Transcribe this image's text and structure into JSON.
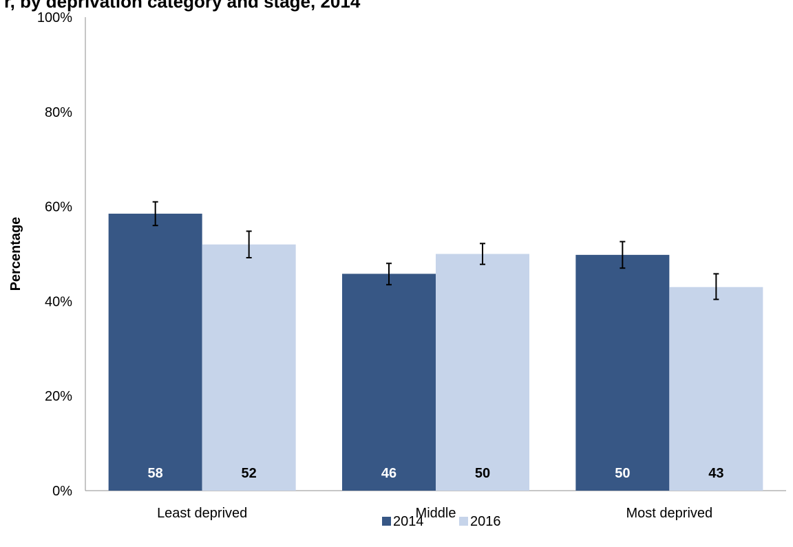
{
  "chart_data": {
    "type": "bar",
    "title": "r, by deprivation category and stage, 2014",
    "ylabel": "Percentage",
    "xlabel": "",
    "ylim": [
      0,
      100
    ],
    "yticks": [
      0,
      20,
      40,
      60,
      80,
      100
    ],
    "ytick_labels": [
      "0%",
      "20%",
      "40%",
      "60%",
      "80%",
      "100%"
    ],
    "categories": [
      "Least deprived",
      "Middle",
      "Most deprived"
    ],
    "series": [
      {
        "name": "2014",
        "color": "#375785",
        "label_color": "#ffffff",
        "values": [
          58.5,
          45.8,
          49.8
        ],
        "labels": [
          "58",
          "46",
          "50"
        ],
        "error_low": [
          56.0,
          43.5,
          47.0
        ],
        "error_high": [
          61.0,
          48.0,
          52.6
        ]
      },
      {
        "name": "2016",
        "color": "#c6d4ea",
        "label_color": "#000000",
        "values": [
          52.0,
          50.0,
          43.0
        ],
        "labels": [
          "52",
          "50",
          "43"
        ],
        "error_low": [
          49.2,
          47.8,
          40.4
        ],
        "error_high": [
          54.8,
          52.2,
          45.8
        ]
      }
    ],
    "legend_position": "bottom",
    "grid": false
  }
}
